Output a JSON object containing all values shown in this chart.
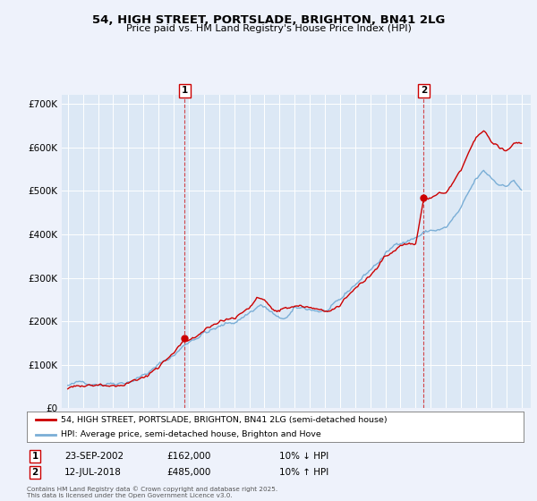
{
  "title_line1": "54, HIGH STREET, PORTSLADE, BRIGHTON, BN41 2LG",
  "title_line2": "Price paid vs. HM Land Registry's House Price Index (HPI)",
  "ylim": [
    0,
    720000
  ],
  "yticks": [
    0,
    100000,
    200000,
    300000,
    400000,
    500000,
    600000,
    700000
  ],
  "ytick_labels": [
    "£0",
    "£100K",
    "£200K",
    "£300K",
    "£400K",
    "£500K",
    "£600K",
    "£700K"
  ],
  "background_color": "#eef2fb",
  "plot_bg_color": "#dce8f5",
  "grid_color": "#ffffff",
  "line_red_color": "#cc0000",
  "line_blue_color": "#7aaed6",
  "marker1_date": 2002.73,
  "marker1_price": 162000,
  "marker1_label": "1",
  "marker2_date": 2018.53,
  "marker2_price": 485000,
  "marker2_label": "2",
  "legend_label_red": "54, HIGH STREET, PORTSLADE, BRIGHTON, BN41 2LG (semi-detached house)",
  "legend_label_blue": "HPI: Average price, semi-detached house, Brighton and Hove",
  "note1_label": "1",
  "note1_date": "23-SEP-2002",
  "note1_price": "£162,000",
  "note1_hpi": "10% ↓ HPI",
  "note2_label": "2",
  "note2_date": "12-JUL-2018",
  "note2_price": "£485,000",
  "note2_hpi": "10% ↑ HPI",
  "copyright": "Contains HM Land Registry data © Crown copyright and database right 2025.\nThis data is licensed under the Open Government Licence v3.0."
}
